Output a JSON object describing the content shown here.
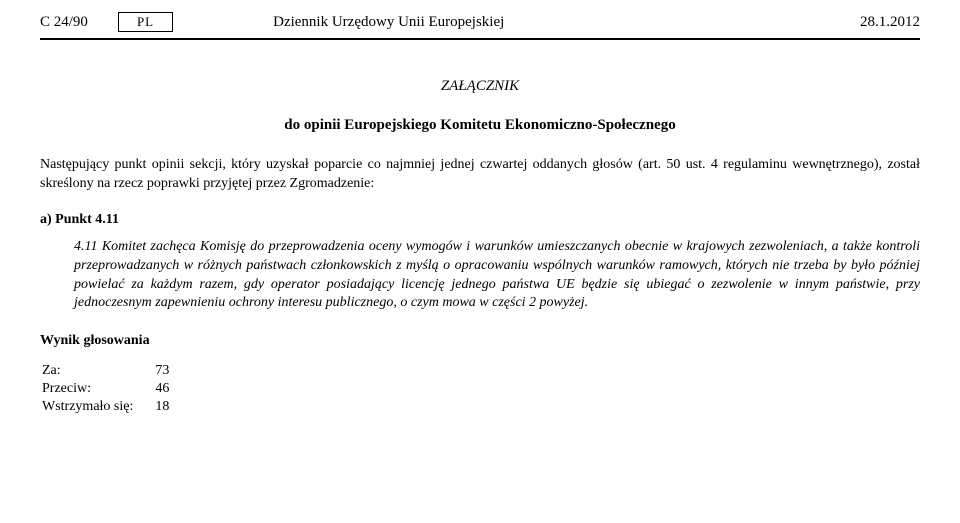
{
  "header": {
    "left": "C 24/90",
    "pl": "PL",
    "center": "Dziennik Urzędowy Unii Europejskiej",
    "right": "28.1.2012"
  },
  "annex_title": "ZAŁĄCZNIK",
  "subhead": "do opinii Europejskiego Komitetu Ekonomiczno-Społecznego",
  "intro": "Następujący punkt opinii sekcji, który uzyskał poparcie co najmniej jednej czwartej oddanych głosów (art. 50 ust. 4 regulaminu wewnętrznego), został skreślony na rzecz poprawki przyjętej przez Zgromadzenie:",
  "section_label": "a)  Punkt 4.11",
  "italic_para": "4.11 Komitet zachęca Komisję do przeprowadzenia oceny wymogów i warunków umieszczanych obecnie w krajowych zezwoleniach, a także kontroli przeprowadzanych w różnych państwach członkowskich z myślą o opracowaniu wspólnych warunków ramowych, których nie trzeba by było później powielać za każdym razem, gdy operator posiadający licencję jednego państwa UE będzie się ubiegać o zezwolenie w innym państwie, przy jednoczesnym zapewnieniu ochrony interesu publicznego, o czym mowa w części 2 powyżej.",
  "vote": {
    "head": "Wynik głosowania",
    "rows": [
      {
        "label": "Za:",
        "value": "73"
      },
      {
        "label": "Przeciw:",
        "value": "46"
      },
      {
        "label": "Wstrzymało się:",
        "value": "18"
      }
    ]
  }
}
